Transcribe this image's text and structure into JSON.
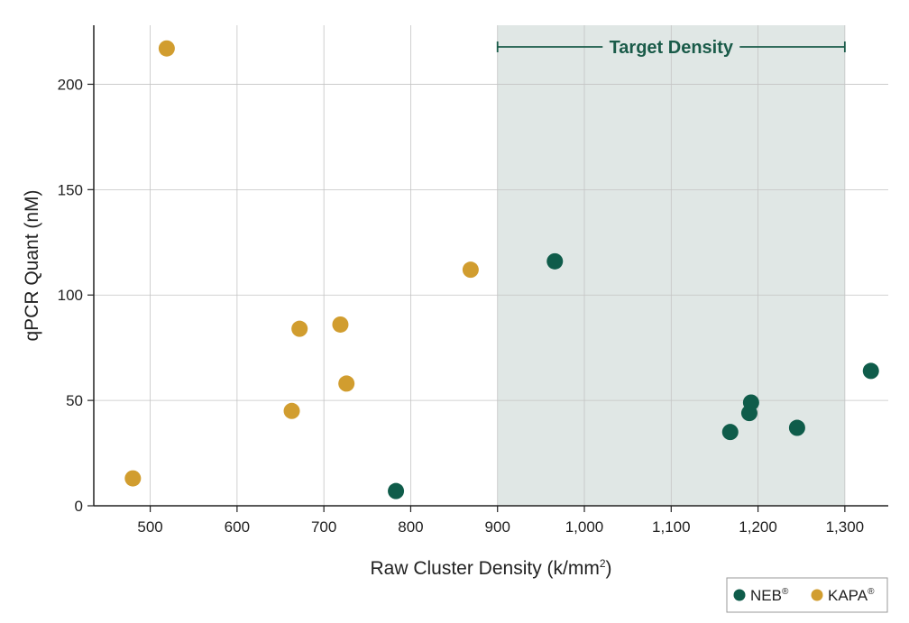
{
  "colors": {
    "neb": "#0f5c4a",
    "kapa": "#d19d2f",
    "band_fill": "#e0e7e5",
    "grid": "#c4c4c4",
    "axis": "#222222",
    "band_label": "#1a5b49"
  },
  "chart_data": {
    "type": "scatter",
    "title": "",
    "xlabel": "Raw Cluster Density (k/mm",
    "xlabel_superscript": "2",
    "xlabel_suffix": ")",
    "ylabel": "qPCR Quant (nM)",
    "xlim": [
      435,
      1350
    ],
    "ylim": [
      0,
      228
    ],
    "x_ticks": [
      500,
      600,
      700,
      800,
      900,
      1000,
      1100,
      1200,
      1300
    ],
    "x_tick_labels": [
      "500",
      "600",
      "700",
      "800",
      "900",
      "1,000",
      "1,100",
      "1,200",
      "1,300"
    ],
    "y_ticks": [
      0,
      50,
      100,
      150,
      200
    ],
    "y_tick_labels": [
      "0",
      "50",
      "100",
      "150",
      "200"
    ],
    "grid": true,
    "legend_position": "bottom-right",
    "target_band": {
      "x_start": 900,
      "x_end": 1300,
      "label": "Target Density"
    },
    "series": [
      {
        "name": "NEB",
        "name_mark": "®",
        "color_key": "neb",
        "points": [
          {
            "x": 783,
            "y": 7
          },
          {
            "x": 966,
            "y": 116
          },
          {
            "x": 1168,
            "y": 35
          },
          {
            "x": 1190,
            "y": 44
          },
          {
            "x": 1192,
            "y": 49
          },
          {
            "x": 1245,
            "y": 37
          },
          {
            "x": 1330,
            "y": 64
          }
        ]
      },
      {
        "name": "KAPA",
        "name_mark": "®",
        "color_key": "kapa",
        "points": [
          {
            "x": 480,
            "y": 13
          },
          {
            "x": 519,
            "y": 217
          },
          {
            "x": 663,
            "y": 45
          },
          {
            "x": 672,
            "y": 84
          },
          {
            "x": 719,
            "y": 86
          },
          {
            "x": 726,
            "y": 58
          },
          {
            "x": 869,
            "y": 112
          }
        ]
      }
    ]
  }
}
